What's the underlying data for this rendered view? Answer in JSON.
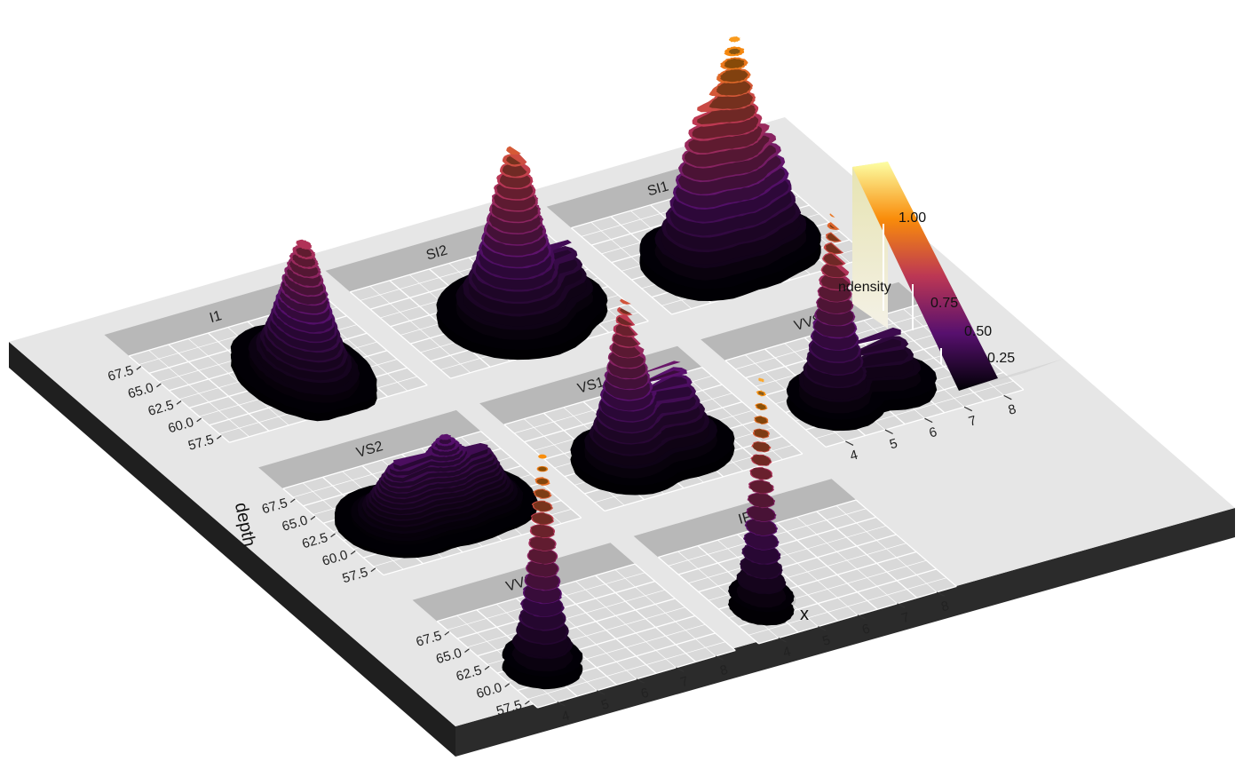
{
  "chart_data": {
    "type": "heatmap",
    "render": "3d-density-surface",
    "xlabel": "x",
    "ylabel": "depth",
    "x_ticks": [
      "4",
      "5",
      "6",
      "7",
      "8"
    ],
    "y_ticks": [
      "57.5",
      "60.0",
      "62.5",
      "65.0",
      "67.5"
    ],
    "xlim": [
      3.5,
      8.5
    ],
    "ylim": [
      56.5,
      69
    ],
    "facets": [
      {
        "label": "I1",
        "row": 0,
        "col": 0,
        "peaks": [
          {
            "x": 6.5,
            "y": 62.0,
            "h": 0.5,
            "sx": 0.45,
            "sy": 2.0
          }
        ]
      },
      {
        "label": "SI2",
        "row": 0,
        "col": 1,
        "peaks": [
          {
            "x": 6.2,
            "y": 61.8,
            "h": 0.64,
            "sx": 0.55,
            "sy": 1.7
          },
          {
            "x": 7.6,
            "y": 62.0,
            "h": 0.18,
            "sx": 0.28,
            "sy": 1.2
          }
        ]
      },
      {
        "label": "SI1",
        "row": 0,
        "col": 2,
        "peaks": [
          {
            "x": 5.2,
            "y": 61.8,
            "h": 0.48,
            "sx": 0.4,
            "sy": 1.5
          },
          {
            "x": 6.2,
            "y": 61.8,
            "h": 0.78,
            "sx": 0.45,
            "sy": 1.4
          },
          {
            "x": 7.2,
            "y": 62.0,
            "h": 0.32,
            "sx": 0.35,
            "sy": 1.3
          }
        ]
      },
      {
        "label": "VS2",
        "row": 1,
        "col": 0,
        "peaks": [
          {
            "x": 5.0,
            "y": 62.0,
            "h": 0.22,
            "sx": 0.45,
            "sy": 1.5
          },
          {
            "x": 6.2,
            "y": 62.0,
            "h": 0.26,
            "sx": 0.45,
            "sy": 1.5
          },
          {
            "x": 7.2,
            "y": 62.0,
            "h": 0.17,
            "sx": 0.35,
            "sy": 1.4
          }
        ]
      },
      {
        "label": "VS1",
        "row": 1,
        "col": 1,
        "peaks": [
          {
            "x": 5.1,
            "y": 61.7,
            "h": 0.62,
            "sx": 0.38,
            "sy": 1.3
          },
          {
            "x": 6.4,
            "y": 61.8,
            "h": 0.3,
            "sx": 0.45,
            "sy": 1.3
          }
        ]
      },
      {
        "label": "VVS2",
        "row": 1,
        "col": 2,
        "peaks": [
          {
            "x": 4.8,
            "y": 61.8,
            "h": 0.72,
            "sx": 0.33,
            "sy": 1.1
          },
          {
            "x": 6.3,
            "y": 61.8,
            "h": 0.2,
            "sx": 0.35,
            "sy": 1.1
          }
        ]
      },
      {
        "label": "VVS1",
        "row": 2,
        "col": 0,
        "peaks": [
          {
            "x": 4.7,
            "y": 61.8,
            "h": 0.8,
            "sx": 0.28,
            "sy": 0.9
          }
        ]
      },
      {
        "label": "IF",
        "row": 2,
        "col": 1,
        "peaks": [
          {
            "x": 4.6,
            "y": 61.6,
            "h": 0.86,
            "sx": 0.22,
            "sy": 0.8
          }
        ]
      }
    ],
    "legend": {
      "title": "ndensity",
      "values": [
        "1.00",
        "0.75",
        "0.50",
        "0.25"
      ],
      "colors": [
        "#FCFFA4",
        "#F98C0A",
        "#BC3754",
        "#57106E",
        "#000004"
      ]
    },
    "colors": {
      "board_top": "#e6e6e6",
      "board_side": "#1f1f1f",
      "panel_bg": "#d9d9d9",
      "grid": "#ffffff",
      "strip": "#b8b8b8"
    }
  }
}
